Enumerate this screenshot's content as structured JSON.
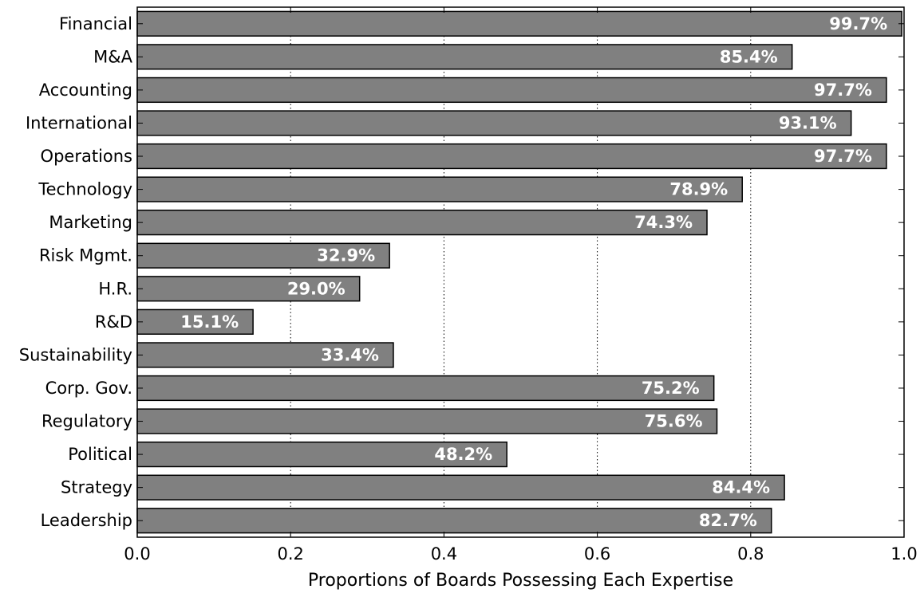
{
  "chart_data": {
    "type": "bar",
    "orientation": "horizontal",
    "categories": [
      "Financial",
      "M&A",
      "Accounting",
      "International",
      "Operations",
      "Technology",
      "Marketing",
      "Risk Mgmt.",
      "H.R.",
      "R&D",
      "Sustainability",
      "Corp. Gov.",
      "Regulatory",
      "Political",
      "Strategy",
      "Leadership"
    ],
    "values": [
      0.997,
      0.854,
      0.977,
      0.931,
      0.977,
      0.789,
      0.743,
      0.329,
      0.29,
      0.151,
      0.334,
      0.752,
      0.756,
      0.482,
      0.844,
      0.827
    ],
    "value_labels": [
      "99.7%",
      "85.4%",
      "97.7%",
      "93.1%",
      "97.7%",
      "78.9%",
      "74.3%",
      "32.9%",
      "29.0%",
      "15.1%",
      "33.4%",
      "75.2%",
      "75.6%",
      "48.2%",
      "84.4%",
      "82.7%"
    ],
    "xlabel": "Proportions of Boards Possessing Each Expertise",
    "ylabel": "",
    "xlim": [
      0.0,
      1.0
    ],
    "xticks": [
      "0.0",
      "0.2",
      "0.4",
      "0.6",
      "0.8",
      "1.0"
    ],
    "grid": "vertical dotted",
    "bar_color": "#808080",
    "label_color": "#ffffff"
  }
}
